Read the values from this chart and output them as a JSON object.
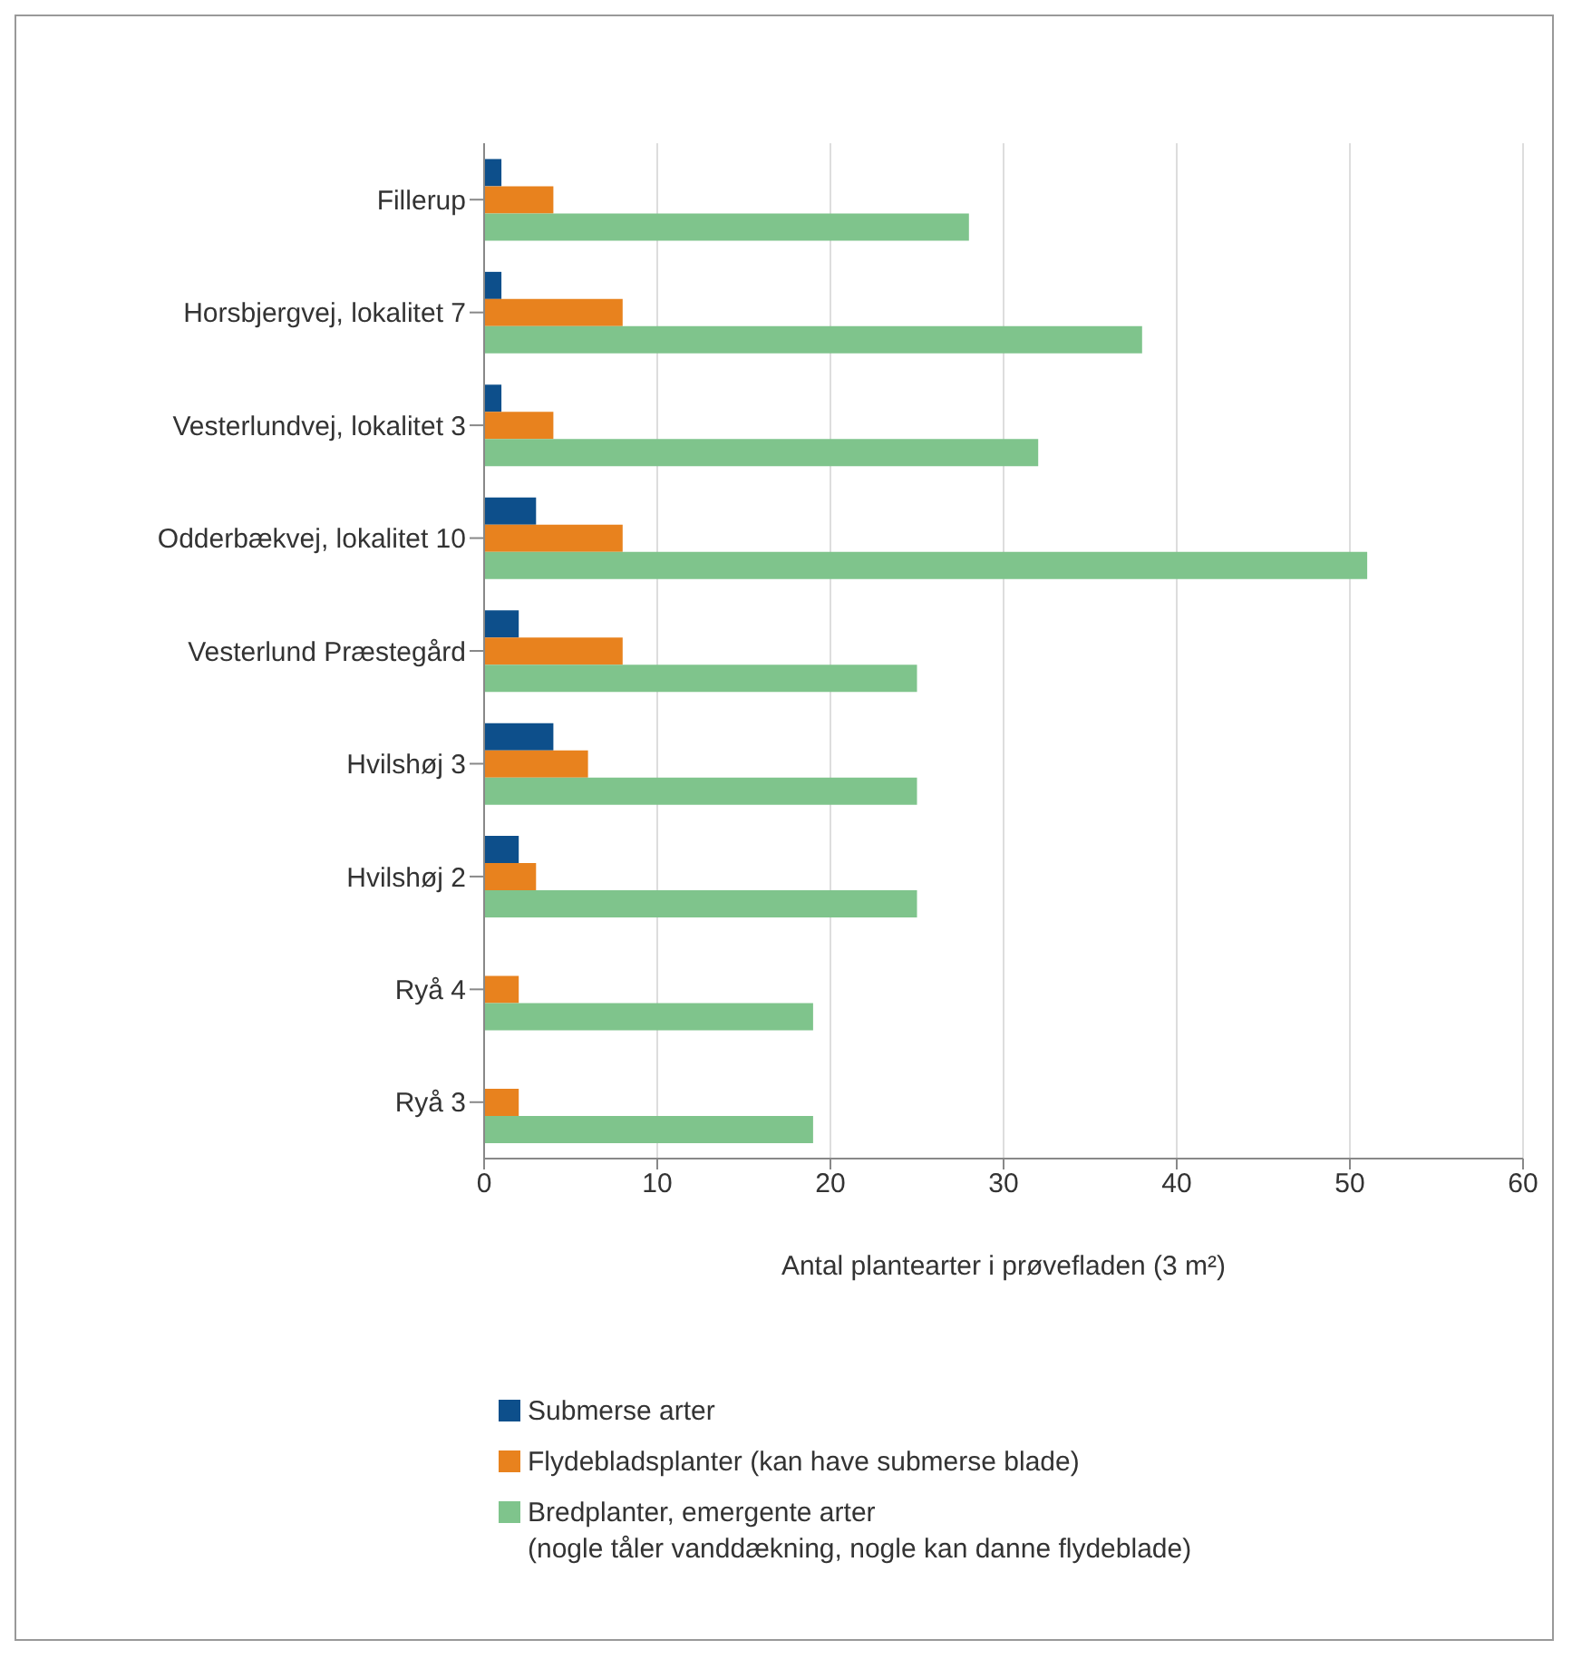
{
  "chart_data": {
    "type": "bar",
    "orientation": "horizontal",
    "xlabel": "Antal plantearter i prøvefladen (3 m²)",
    "categories": [
      "Fillerup",
      "Horsbjergvej, lokalitet 7",
      "Vesterlundvej, lokalitet 3",
      "Odderbækvej, lokalitet 10",
      "Vesterlund Præstegård",
      "Hvilshøj 3",
      "Hvilshøj 2",
      "Ryå 4",
      "Ryå 3"
    ],
    "series": [
      {
        "name": "Submerse arter",
        "color": "#0d4f8b",
        "values": [
          1,
          1,
          1,
          3,
          2,
          4,
          2,
          0,
          0
        ]
      },
      {
        "name": "Flydebladsplanter (kan have submerse blade)",
        "color": "#e8821e",
        "values": [
          4,
          8,
          4,
          8,
          8,
          6,
          3,
          2,
          2
        ]
      },
      {
        "name": "Bredplanter, emergente arter\n(nogle tåler vanddækning, nogle kan danne flydeblade)",
        "color": "#7fc48c",
        "values": [
          28,
          38,
          32,
          51,
          25,
          25,
          25,
          19,
          19
        ]
      }
    ],
    "xlim": [
      0,
      60
    ],
    "xticks": [
      0,
      10,
      20,
      30,
      40,
      50,
      60
    ],
    "grid": "x",
    "legend": "bottom"
  }
}
